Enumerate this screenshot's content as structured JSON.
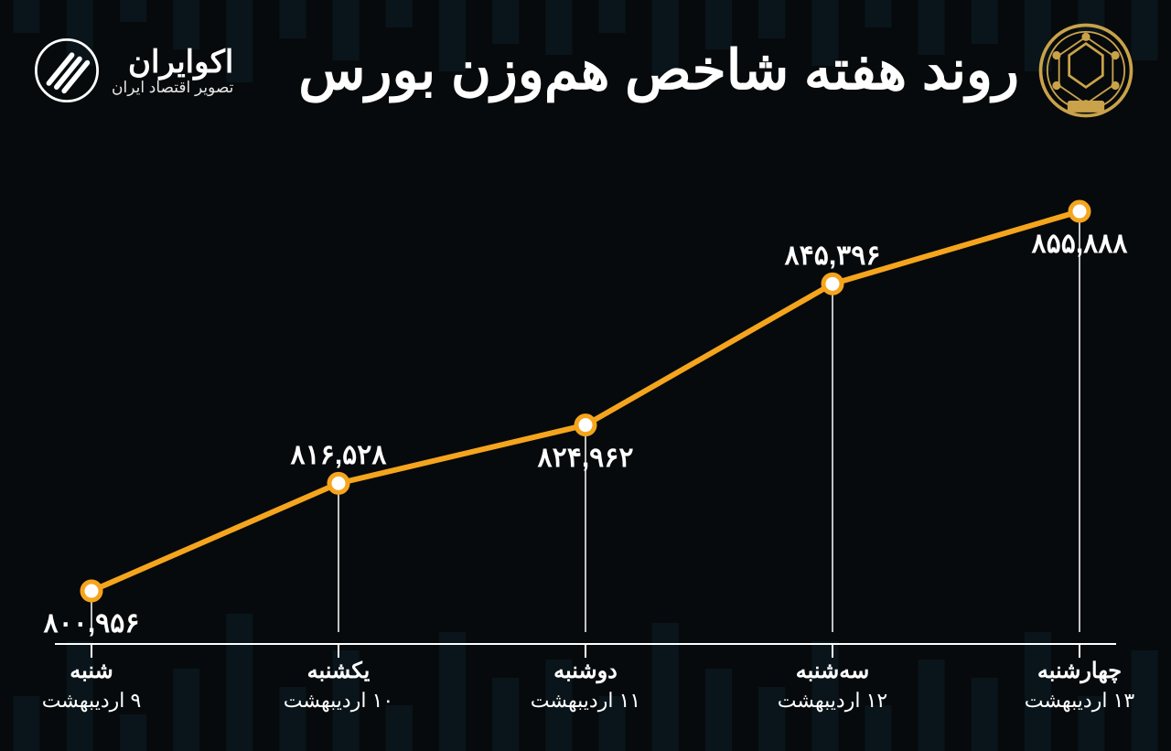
{
  "brand": {
    "title": "اکوایران",
    "subtitle": "تصویر اقتصاد ایران"
  },
  "chart_title": "روند هفته شاخص هم‌وزن بورس",
  "colors": {
    "background": "#070a0c",
    "line": "#f5a51d",
    "marker_fill": "#ffffff",
    "marker_stroke": "#f5a51d",
    "text": "#ffffff",
    "axis": "#ffffff",
    "emblem": "#c9a24a",
    "bg_bars": "#0e2a36"
  },
  "chart": {
    "type": "line",
    "ylim": [
      795000,
      860000
    ],
    "line_width": 6,
    "marker_radius": 10,
    "marker_stroke_width": 5,
    "value_fontsize": 30,
    "xlabel_fontsize": 24,
    "points": [
      {
        "day": "شنبه",
        "date": "۹ اردیبهشت",
        "value": 800956,
        "value_label": "۸۰۰,۹۵۶",
        "label_pos": "below"
      },
      {
        "day": "یکشنبه",
        "date": "۱۰ اردیبهشت",
        "value": 816528,
        "value_label": "۸۱۶,۵۲۸",
        "label_pos": "above"
      },
      {
        "day": "دوشنبه",
        "date": "۱۱ اردیبهشت",
        "value": 824962,
        "value_label": "۸۲۴,۹۶۲",
        "label_pos": "below"
      },
      {
        "day": "سه‌شنبه",
        "date": "۱۲ اردیبهشت",
        "value": 845396,
        "value_label": "۸۴۵,۳۹۶",
        "label_pos": "above"
      },
      {
        "day": "چهارشنبه",
        "date": "۱۳ اردیبهشت",
        "value": 855888,
        "value_label": "۸۵۵,۸۸۸",
        "label_pos": "below"
      }
    ]
  },
  "bg_bars": {
    "heights": [
      60,
      120,
      40,
      90,
      150,
      70,
      110,
      50,
      130,
      80,
      100,
      60,
      140,
      90,
      70,
      120,
      50,
      100,
      80,
      130,
      60,
      110
    ]
  }
}
